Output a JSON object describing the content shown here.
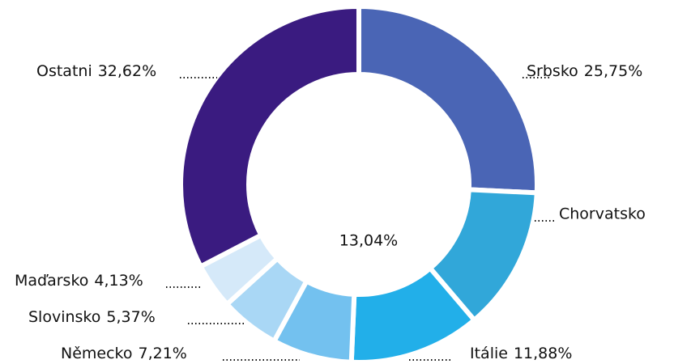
{
  "chart_data": {
    "type": "donut",
    "categories": [
      "Srbsko",
      "Chorvatsko",
      "Itálie",
      "Německo",
      "Slovinsko",
      "Maďarsko",
      "Ostatni"
    ],
    "values": [
      25.75,
      13.04,
      11.88,
      7.21,
      5.37,
      4.13,
      32.62
    ],
    "value_labels": [
      "25,75%",
      "13,04%",
      "11,88%",
      "7,21%",
      "5,37%",
      "4,13%",
      "32,62%"
    ],
    "colors": [
      "#4a65b5",
      "#31a7d9",
      "#22afe9",
      "#73c1ef",
      "#a9d7f5",
      "#d5e9f9",
      "#3a1b80"
    ]
  }
}
